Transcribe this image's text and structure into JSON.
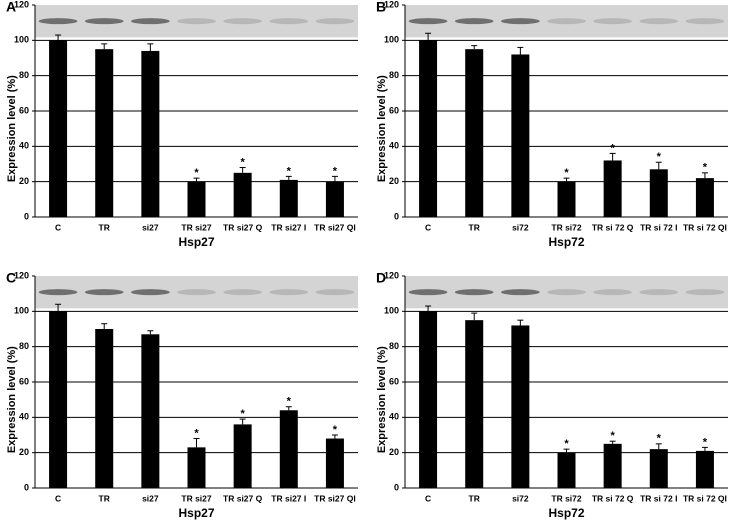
{
  "chart_data": [
    {
      "type": "bar",
      "label": "A",
      "xlabel": "Hsp27",
      "ylabel": "Expression level (%)",
      "color": "#000000",
      "grid": true,
      "categories": [
        "C",
        "TR",
        "si27",
        "TR si27",
        "TR si27 Q",
        "TR si27 I",
        "TR si27 QI"
      ],
      "values": [
        100,
        95,
        94,
        20,
        25,
        21,
        20
      ],
      "errors": [
        3,
        3,
        4,
        2,
        3,
        2,
        3
      ],
      "significance": [
        null,
        null,
        null,
        "*",
        "*",
        "*",
        "*"
      ],
      "ylim": [
        0,
        120
      ],
      "yticks": [
        0,
        20,
        40,
        60,
        80,
        100,
        120
      ]
    },
    {
      "type": "bar",
      "label": "B",
      "xlabel": "Hsp72",
      "ylabel": "Expression level (%)",
      "color": "#000000",
      "grid": true,
      "categories": [
        "C",
        "TR",
        "si72",
        "TR si72",
        "TR si 72 Q",
        "TR si 72 I",
        "TR si 72 QI"
      ],
      "values": [
        100,
        95,
        92,
        20,
        32,
        27,
        22
      ],
      "errors": [
        4,
        2,
        4,
        2,
        4,
        4,
        3
      ],
      "significance": [
        null,
        null,
        null,
        "*",
        "*",
        "*",
        "*"
      ],
      "ylim": [
        0,
        120
      ],
      "yticks": [
        0,
        20,
        40,
        60,
        80,
        100,
        120
      ]
    },
    {
      "type": "bar",
      "label": "C",
      "xlabel": "Hsp27",
      "ylabel": "Expression level (%)",
      "color": "#000000",
      "grid": true,
      "categories": [
        "C",
        "TR",
        "si27",
        "TR si27",
        "TR si27 Q",
        "TR si27 I",
        "TR si27 QI"
      ],
      "values": [
        100,
        90,
        87,
        23,
        36,
        44,
        28
      ],
      "errors": [
        4,
        3,
        2,
        5,
        3,
        2,
        2
      ],
      "significance": [
        null,
        null,
        null,
        "*",
        "*",
        "*",
        "*"
      ],
      "ylim": [
        0,
        120
      ],
      "yticks": [
        0,
        20,
        40,
        60,
        80,
        100,
        120
      ]
    },
    {
      "type": "bar",
      "label": "D",
      "xlabel": "Hsp72",
      "ylabel": "Expression level (%)",
      "color": "#000000",
      "grid": true,
      "categories": [
        "C",
        "TR",
        "si72",
        "TR si72",
        "TR si 72 Q",
        "TR si 72 I",
        "TR si 72 QI"
      ],
      "values": [
        100,
        95,
        92,
        20,
        25,
        22,
        21
      ],
      "errors": [
        3,
        4,
        3,
        2,
        1.5,
        3,
        2
      ],
      "significance": [
        null,
        null,
        null,
        "*",
        "*",
        "*",
        "*"
      ],
      "ylim": [
        0,
        120
      ],
      "yticks": [
        0,
        20,
        40,
        60,
        80,
        100,
        120
      ]
    }
  ]
}
